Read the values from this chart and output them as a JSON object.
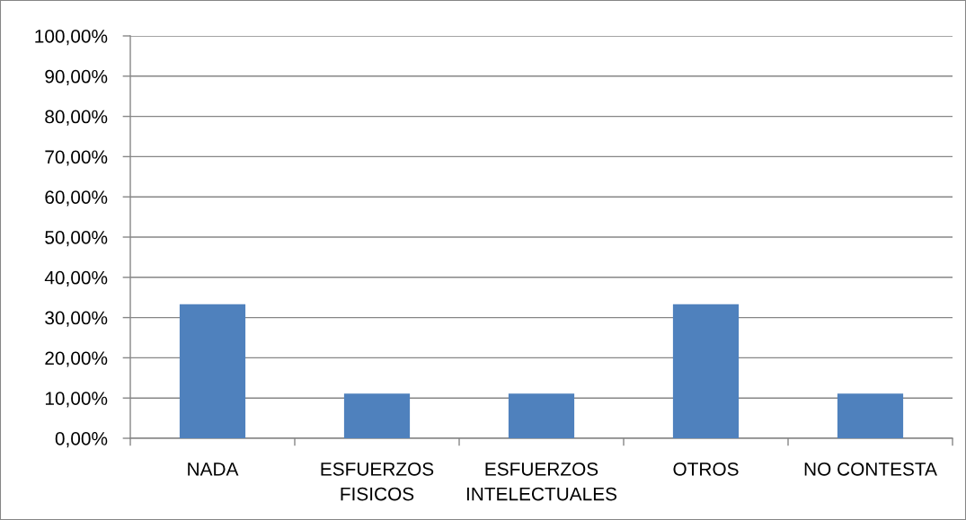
{
  "chart_data": {
    "type": "bar",
    "categories": [
      "NADA",
      "ESFUERZOS\nFISICOS",
      "ESFUERZOS\nINTELECTUALES",
      "OTROS",
      "NO CONTESTA"
    ],
    "values": [
      33.3,
      11.1,
      11.1,
      33.3,
      11.1
    ],
    "color": "#4f81bd",
    "ylim": [
      0,
      100
    ],
    "yticks": [
      {
        "value": 0,
        "label": "0,00%"
      },
      {
        "value": 10,
        "label": "10,00%"
      },
      {
        "value": 20,
        "label": "20,00%"
      },
      {
        "value": 30,
        "label": "30,00%"
      },
      {
        "value": 40,
        "label": "40,00%"
      },
      {
        "value": 50,
        "label": "50,00%"
      },
      {
        "value": 60,
        "label": "60,00%"
      },
      {
        "value": 70,
        "label": "70,00%"
      },
      {
        "value": 80,
        "label": "80,00%"
      },
      {
        "value": 90,
        "label": "90,00%"
      },
      {
        "value": 100,
        "label": "100,00%"
      }
    ],
    "grid": "y"
  }
}
